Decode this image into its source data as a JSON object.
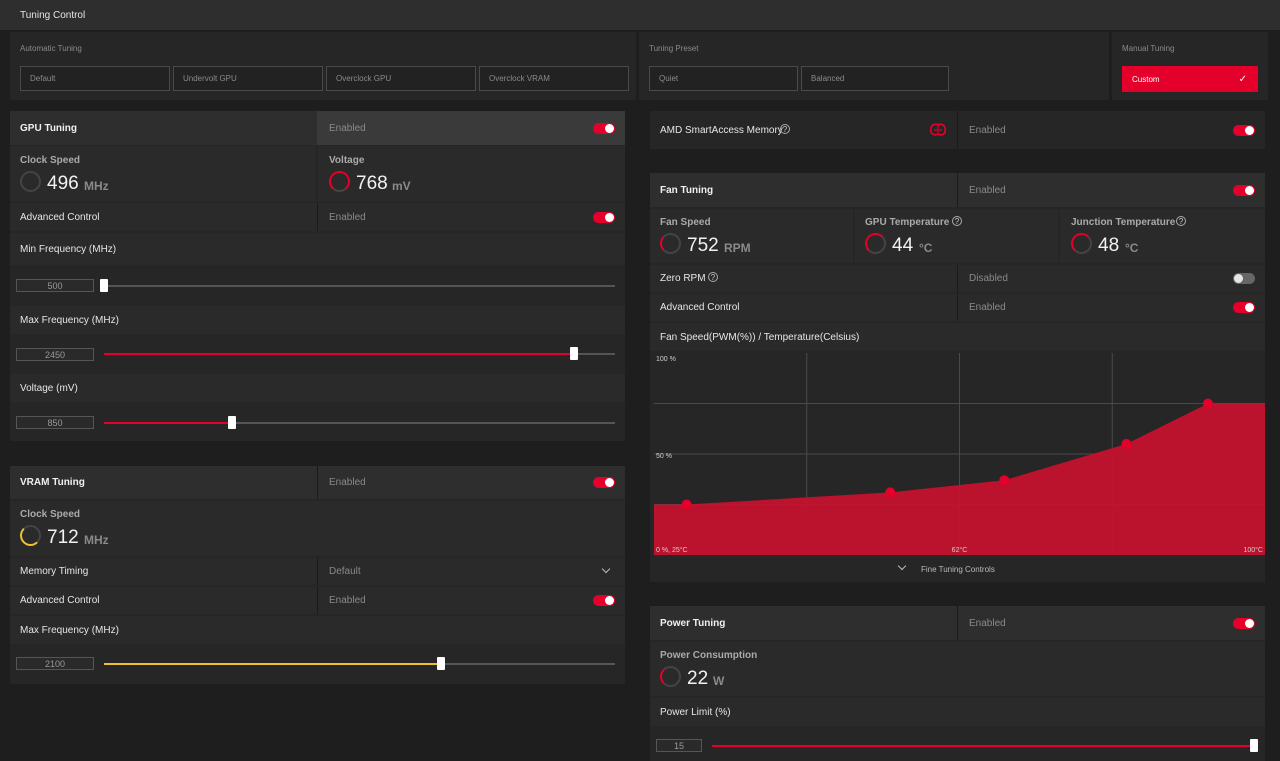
{
  "header": {
    "title": "Tuning Control"
  },
  "auto_tuning": {
    "label": "Automatic Tuning",
    "buttons": [
      "Default",
      "Undervolt GPU",
      "Overclock GPU",
      "Overclock VRAM"
    ]
  },
  "tuning_preset": {
    "label": "Tuning Preset",
    "buttons": [
      "Quiet",
      "Balanced"
    ]
  },
  "manual_tuning": {
    "label": "Manual Tuning",
    "button": "Custom"
  },
  "gpu_tuning": {
    "title": "GPU Tuning",
    "state": "Enabled",
    "clock_label": "Clock Speed",
    "clock_value": "496",
    "clock_unit": "MHz",
    "voltage_label": "Voltage",
    "voltage_value": "768",
    "voltage_unit": "mV",
    "advanced_label": "Advanced Control",
    "advanced_state": "Enabled",
    "min_freq_label": "Min Frequency (MHz)",
    "min_freq_value": "500",
    "min_freq_fraction": 0,
    "max_freq_label": "Max Frequency (MHz)",
    "max_freq_value": "2450",
    "max_freq_fraction": 0.92,
    "voltage_slider_label": "Voltage (mV)",
    "voltage_slider_value": "850",
    "voltage_slider_fraction": 0.25
  },
  "vram_tuning": {
    "title": "VRAM Tuning",
    "state": "Enabled",
    "clock_label": "Clock Speed",
    "clock_value": "712",
    "clock_unit": "MHz",
    "timing_label": "Memory Timing",
    "timing_value": "Default",
    "advanced_label": "Advanced Control",
    "advanced_state": "Enabled",
    "max_freq_label": "Max Frequency (MHz)",
    "max_freq_value": "2100",
    "max_freq_fraction": 0.66,
    "accent": "#f0c030"
  },
  "sam": {
    "label": "AMD SmartAccess Memory",
    "state": "Enabled",
    "icon": "chip-brain-icon"
  },
  "fan_tuning": {
    "title": "Fan Tuning",
    "state": "Enabled",
    "fan_speed_label": "Fan Speed",
    "fan_speed_value": "752",
    "fan_speed_unit": "RPM",
    "gpu_temp_label": "GPU Temperature",
    "gpu_temp_value": "44",
    "gpu_temp_unit": "°C",
    "junction_temp_label": "Junction Temperature",
    "junction_temp_value": "48",
    "junction_temp_unit": "°C",
    "zero_rpm_label": "Zero RPM",
    "zero_rpm_state": "Disabled",
    "advanced_label": "Advanced Control",
    "advanced_state": "Enabled",
    "curve_title": "Fan Speed(PWM(%)) / Temperature(Celsius)",
    "fine_tuning_label": "Fine Tuning Controls"
  },
  "chart_data": {
    "type": "area",
    "title": "Fan Speed(PWM(%)) / Temperature(Celsius)",
    "x": [
      29,
      54,
      68,
      83,
      93
    ],
    "y": [
      25,
      31,
      37,
      55,
      75
    ],
    "xlim": [
      25,
      100
    ],
    "ylim": [
      0,
      100
    ],
    "y_tick_labels": [
      "100 %",
      "50 %"
    ],
    "corner_label": "0 %, 25°C",
    "x_tick_labels": [
      "62°C",
      "100°C"
    ],
    "grid": true,
    "color": "#c8102e"
  },
  "power_tuning": {
    "title": "Power Tuning",
    "state": "Enabled",
    "consumption_label": "Power Consumption",
    "consumption_value": "22",
    "consumption_unit": "W",
    "limit_label": "Power Limit (%)",
    "limit_value": "15",
    "limit_fraction": 1.0
  },
  "colors": {
    "accent": "#e4002b",
    "background": "#1e1e1e"
  }
}
